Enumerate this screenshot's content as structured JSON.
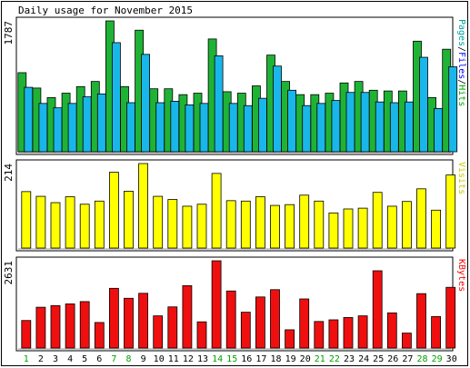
{
  "chart_data": {
    "type": "bar",
    "title": "Daily usage for November 2015",
    "categories": [
      "1",
      "2",
      "3",
      "4",
      "5",
      "6",
      "7",
      "8",
      "9",
      "10",
      "11",
      "12",
      "13",
      "14",
      "15",
      "16",
      "17",
      "18",
      "19",
      "20",
      "21",
      "22",
      "23",
      "24",
      "25",
      "26",
      "27",
      "28",
      "29",
      "30"
    ],
    "weekend_days": [
      "1",
      "7",
      "8",
      "14",
      "15",
      "21",
      "22",
      "28",
      "29"
    ],
    "panels": [
      {
        "id": "hits",
        "max_label": "1787",
        "ylim": [
          0,
          1787
        ],
        "legend": [
          {
            "text": "Pages",
            "color": "#00a0a0"
          },
          {
            "text": "Files",
            "color": "#0000ff"
          },
          {
            "text": "Hits",
            "color": "#00aa00"
          }
        ],
        "series": [
          {
            "name": "Hits",
            "color": "#1fb336",
            "values": [
              1080,
              870,
              740,
              800,
              890,
              960,
              1787,
              890,
              1660,
              860,
              860,
              780,
              800,
              1540,
              820,
              800,
              900,
              1320,
              960,
              780,
              780,
              800,
              940,
              960,
              840,
              830,
              830,
              1510,
              740,
              1400
            ]
          },
          {
            "name": "Files",
            "color": "#19b6ea",
            "values": [
              880,
              660,
              600,
              660,
              750,
              790,
              1490,
              670,
              1330,
              670,
              690,
              640,
              660,
              1310,
              660,
              630,
              730,
              1170,
              840,
              630,
              660,
              700,
              810,
              810,
              680,
              670,
              680,
              1290,
              590,
              1160
            ]
          }
        ]
      },
      {
        "id": "visits",
        "max_label": "214",
        "ylim": [
          0,
          214
        ],
        "legend": [
          {
            "text": "Visits",
            "color": "#cccc00"
          }
        ],
        "series": [
          {
            "name": "Visits",
            "color": "#ffff00",
            "values": [
              143,
              131,
              115,
              130,
              111,
              119,
              192,
              144,
              214,
              131,
              123,
              106,
              111,
              189,
              120,
              119,
              130,
              108,
              110,
              134,
              119,
              89,
              99,
              101,
              141,
              106,
              118,
              150,
              96,
              185
            ]
          }
        ]
      },
      {
        "id": "kbytes",
        "max_label": "2631",
        "ylim": [
          0,
          2631
        ],
        "legend": [
          {
            "text": "KBytes",
            "color": "#ff0000"
          }
        ],
        "series": [
          {
            "name": "KBytes",
            "color": "#ef0f0f",
            "values": [
              830,
              1230,
              1280,
              1330,
              1400,
              770,
              1800,
              1500,
              1650,
              970,
              1240,
              1880,
              790,
              2631,
              1720,
              1080,
              1540,
              1760,
              550,
              1480,
              800,
              850,
              920,
              970,
              2330,
              1060,
              450,
              1640,
              950,
              1830
            ]
          }
        ]
      }
    ]
  }
}
